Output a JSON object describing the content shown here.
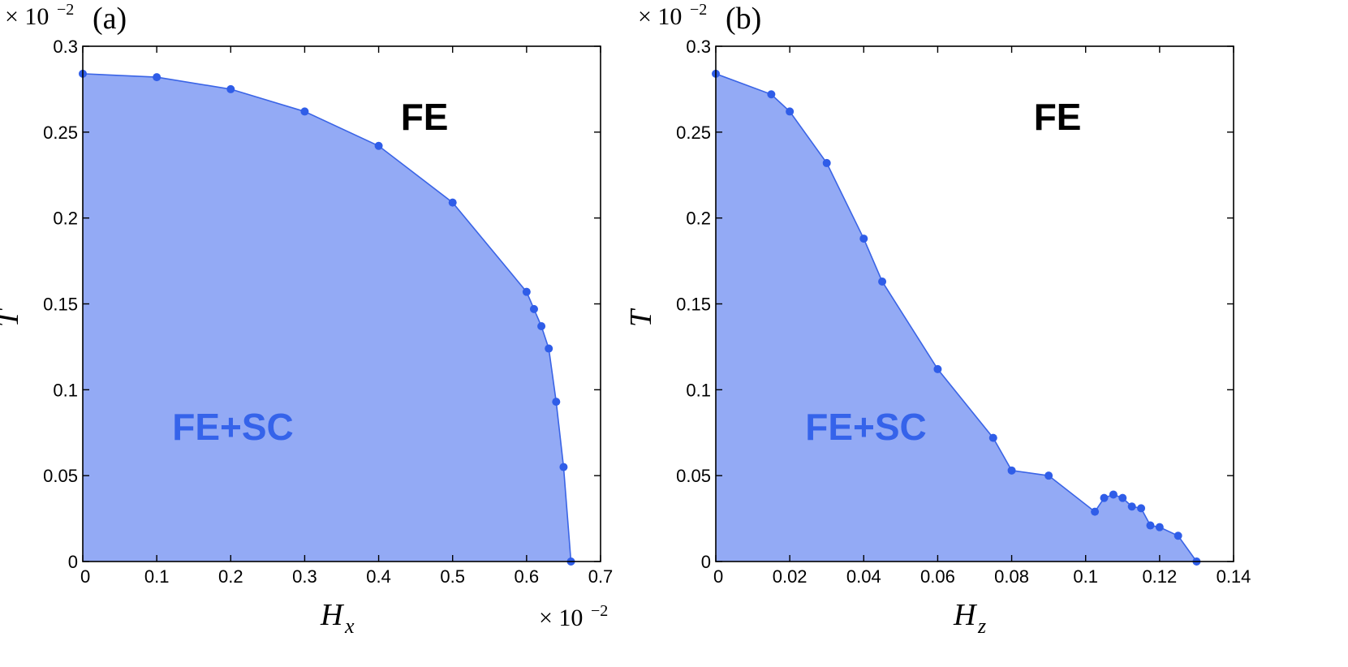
{
  "colors": {
    "fill": "#93aaf5",
    "line": "#3a64e6",
    "marker": "#2f5de8",
    "region_text": "#3563ea"
  },
  "chart_data": [
    {
      "type": "area",
      "panel_label": "(a)",
      "ylabel": "T",
      "xlabel_var": "H",
      "xlabel_sub": "x",
      "x_multiplier": "× 10",
      "x_multiplier_exp": "−2",
      "y_multiplier": "× 10",
      "y_multiplier_exp": "−2",
      "xlim": [
        0,
        0.7
      ],
      "ylim": [
        0,
        0.3
      ],
      "xticks": [
        0,
        0.1,
        0.2,
        0.3,
        0.4,
        0.5,
        0.6,
        0.7
      ],
      "xtick_labels": [
        "0",
        "0.1",
        "0.2",
        "0.3",
        "0.4",
        "0.5",
        "0.6",
        "0.7"
      ],
      "yticks": [
        0,
        0.05,
        0.1,
        0.15,
        0.2,
        0.25,
        0.3
      ],
      "ytick_labels": [
        "0",
        "0.05",
        "0.1",
        "0.15",
        "0.2",
        "0.25",
        "0.3"
      ],
      "x": [
        0,
        0.1,
        0.2,
        0.3,
        0.4,
        0.5,
        0.6,
        0.61,
        0.62,
        0.63,
        0.64,
        0.65,
        0.66
      ],
      "y": [
        0.284,
        0.282,
        0.275,
        0.262,
        0.242,
        0.209,
        0.157,
        0.147,
        0.137,
        0.124,
        0.093,
        0.055,
        0.0
      ],
      "region_outside": "FE",
      "region_inside": "FE+SC"
    },
    {
      "type": "area",
      "panel_label": "(b)",
      "ylabel": "T",
      "xlabel_var": "H",
      "xlabel_sub": "z",
      "x_multiplier": "",
      "x_multiplier_exp": "",
      "y_multiplier": "× 10",
      "y_multiplier_exp": "−2",
      "xlim": [
        0,
        0.14
      ],
      "ylim": [
        0,
        0.3
      ],
      "xticks": [
        0,
        0.02,
        0.04,
        0.06,
        0.08,
        0.1,
        0.12,
        0.14
      ],
      "xtick_labels": [
        "0",
        "0.02",
        "0.04",
        "0.06",
        "0.08",
        "0.1",
        "0.12",
        "0.14"
      ],
      "yticks": [
        0,
        0.05,
        0.1,
        0.15,
        0.2,
        0.25,
        0.3
      ],
      "ytick_labels": [
        "0",
        "0.05",
        "0.1",
        "0.15",
        "0.2",
        "0.25",
        "0.3"
      ],
      "x": [
        0,
        0.015,
        0.02,
        0.03,
        0.04,
        0.045,
        0.06,
        0.075,
        0.08,
        0.09,
        0.1025,
        0.105,
        0.1075,
        0.11,
        0.1125,
        0.115,
        0.1175,
        0.12,
        0.125,
        0.13
      ],
      "y": [
        0.284,
        0.272,
        0.262,
        0.232,
        0.188,
        0.163,
        0.112,
        0.072,
        0.053,
        0.05,
        0.029,
        0.037,
        0.039,
        0.037,
        0.032,
        0.031,
        0.021,
        0.02,
        0.015,
        0.0
      ],
      "region_outside": "FE",
      "region_inside": "FE+SC"
    }
  ]
}
